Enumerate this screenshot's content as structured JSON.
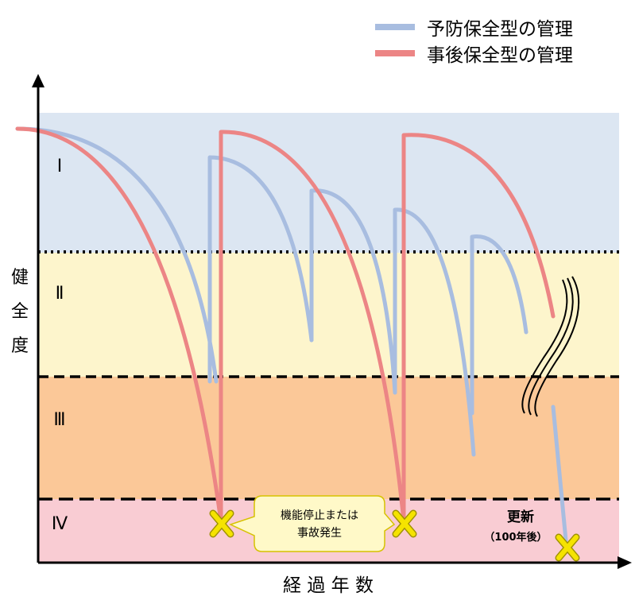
{
  "legend": {
    "preventive": {
      "label": "予防保全型の管理",
      "color": "#a8bde0"
    },
    "reactive": {
      "label": "事後保全型の管理",
      "color": "#ec8585"
    }
  },
  "y_axis_label": [
    "健",
    "全",
    "度"
  ],
  "x_axis_label": "経 過 年 数",
  "zones": [
    {
      "label": "Ⅰ",
      "color": "#dce6f2"
    },
    {
      "label": "Ⅱ",
      "color": "#fdf5cc"
    },
    {
      "label": "Ⅲ",
      "color": "#fbc898"
    },
    {
      "label": "Ⅳ",
      "color": "#f9ccd3"
    }
  ],
  "callout": {
    "line1": "機能停止または",
    "line2": "事故発生"
  },
  "renewal": {
    "title": "更新",
    "note": "（100年後）"
  },
  "colors": {
    "failure_mark": "#f5e300",
    "failure_mark_edge": "#a09200",
    "callout_fill": "#fff9c8",
    "callout_edge": "#d6c200"
  }
}
